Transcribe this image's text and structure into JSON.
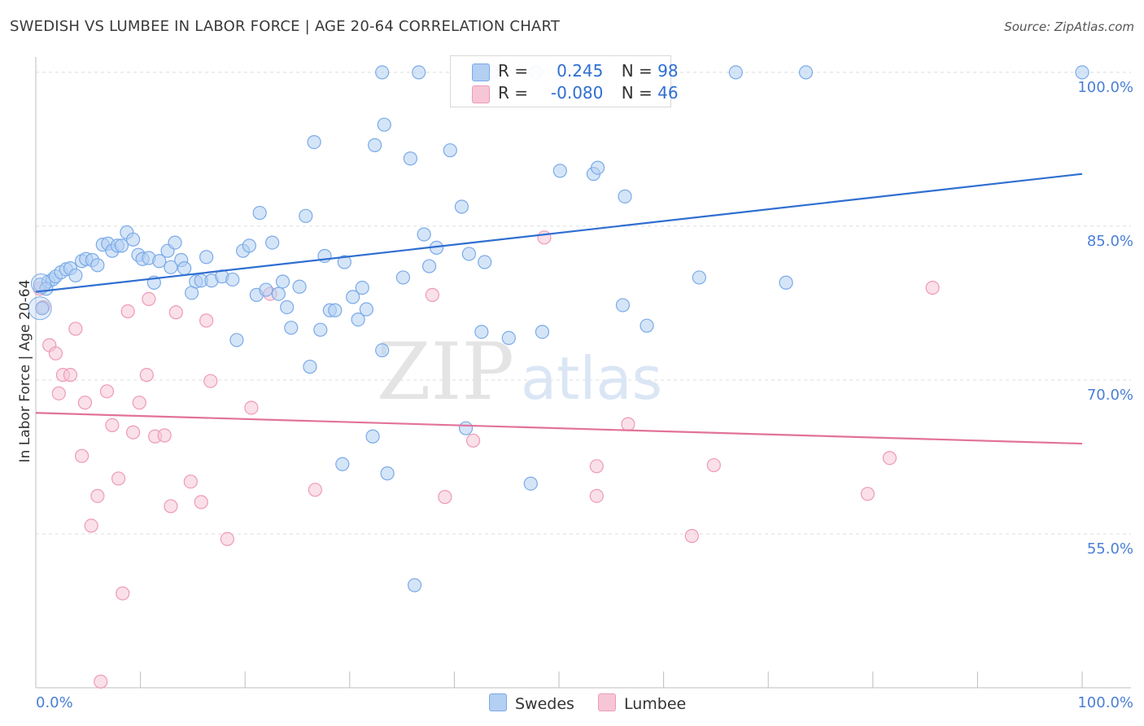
{
  "header": {
    "title": "SWEDISH VS LUMBEE IN LABOR FORCE | AGE 20-64 CORRELATION CHART",
    "source": "Source: ZipAtlas.com"
  },
  "colors": {
    "blue": "#7aaae8",
    "blue_fill": "#b3cff2",
    "blue_line": "#2f6fd1",
    "pink": "#ee9ab5",
    "pink_fill": "#f6c6d6",
    "pink_line": "#e2729a",
    "grid": "#dcdcdc",
    "tick_text": "#4a7fd6"
  },
  "legend": {
    "rows": [
      {
        "r_label": "R = ",
        "r_value": "0.245",
        "n_label": "N = ",
        "n_value": "98"
      },
      {
        "r_label": "R = ",
        "r_value": "-0.080",
        "n_label": "N = ",
        "n_value": "46"
      }
    ]
  },
  "bottom_legend": [
    "Swedes",
    "Lumbee"
  ],
  "watermark": {
    "zip": "ZIP",
    "atlas": "atlas"
  },
  "chart_data": {
    "type": "scatter",
    "title": "SWEDISH VS LUMBEE IN LABOR FORCE | AGE 20-64 CORRELATION CHART",
    "xlabel": "",
    "ylabel": "In Labor Force | Age 20-64",
    "xlim": [
      0,
      100
    ],
    "ylim": [
      40,
      101.5
    ],
    "x_tick_labels": [
      "0.0%",
      "100.0%"
    ],
    "y_ticks": [
      55,
      70,
      85,
      100
    ],
    "y_tick_labels": [
      "55.0%",
      "70.0%",
      "85.0%",
      "100.0%"
    ],
    "grid": true,
    "legend_position": "top-center",
    "series": [
      {
        "name": "Swedes",
        "color": "#7aaae8",
        "r": 0.245,
        "n": 98,
        "trend": {
          "x": [
            0,
            100
          ],
          "y": [
            78.6,
            90.1
          ]
        },
        "points": [
          [
            0.4,
            79.3
          ],
          [
            0.6,
            77.0
          ],
          [
            1.2,
            79.6
          ],
          [
            1.6,
            79.8
          ],
          [
            1.9,
            80.1
          ],
          [
            2.4,
            80.5
          ],
          [
            2.9,
            80.8
          ],
          [
            3.3,
            80.9
          ],
          [
            3.8,
            80.2
          ],
          [
            4.4,
            81.6
          ],
          [
            4.8,
            81.8
          ],
          [
            5.4,
            81.7
          ],
          [
            5.9,
            81.2
          ],
          [
            6.4,
            83.2
          ],
          [
            6.9,
            83.3
          ],
          [
            7.3,
            82.6
          ],
          [
            7.8,
            83.1
          ],
          [
            8.2,
            83.1
          ],
          [
            8.7,
            84.4
          ],
          [
            9.3,
            83.7
          ],
          [
            9.8,
            82.2
          ],
          [
            10.2,
            81.8
          ],
          [
            10.8,
            81.9
          ],
          [
            11.3,
            79.5
          ],
          [
            11.8,
            81.6
          ],
          [
            12.6,
            82.6
          ],
          [
            12.9,
            81.0
          ],
          [
            13.3,
            83.4
          ],
          [
            13.9,
            81.7
          ],
          [
            14.2,
            80.9
          ],
          [
            14.9,
            78.5
          ],
          [
            15.3,
            79.6
          ],
          [
            15.8,
            79.7
          ],
          [
            16.3,
            82.0
          ],
          [
            16.8,
            79.7
          ],
          [
            17.8,
            80.1
          ],
          [
            18.8,
            79.8
          ],
          [
            19.2,
            73.9
          ],
          [
            19.8,
            82.6
          ],
          [
            20.4,
            83.1
          ],
          [
            21.1,
            78.3
          ],
          [
            21.4,
            86.3
          ],
          [
            22.0,
            78.8
          ],
          [
            22.6,
            83.4
          ],
          [
            23.2,
            78.4
          ],
          [
            23.6,
            79.6
          ],
          [
            24.0,
            77.1
          ],
          [
            24.4,
            75.1
          ],
          [
            25.2,
            79.1
          ],
          [
            25.8,
            86.0
          ],
          [
            26.2,
            71.3
          ],
          [
            26.6,
            93.2
          ],
          [
            27.2,
            74.9
          ],
          [
            27.6,
            82.1
          ],
          [
            28.1,
            76.8
          ],
          [
            28.6,
            76.8
          ],
          [
            29.3,
            61.8
          ],
          [
            29.5,
            81.5
          ],
          [
            30.3,
            78.1
          ],
          [
            30.8,
            75.9
          ],
          [
            31.2,
            79.0
          ],
          [
            31.6,
            76.9
          ],
          [
            32.2,
            64.5
          ],
          [
            32.4,
            92.9
          ],
          [
            33.1,
            72.9
          ],
          [
            33.3,
            94.9
          ],
          [
            33.6,
            60.9
          ],
          [
            33.1,
            100.0
          ],
          [
            35.1,
            80.0
          ],
          [
            35.8,
            91.6
          ],
          [
            36.2,
            50.0
          ],
          [
            36.6,
            100.0
          ],
          [
            37.1,
            84.2
          ],
          [
            37.6,
            81.1
          ],
          [
            38.3,
            82.9
          ],
          [
            39.6,
            92.4
          ],
          [
            40.7,
            86.9
          ],
          [
            41.1,
            65.3
          ],
          [
            41.4,
            82.3
          ],
          [
            42.6,
            74.7
          ],
          [
            42.9,
            81.5
          ],
          [
            43.6,
            100.0
          ],
          [
            45.2,
            74.1
          ],
          [
            47.3,
            59.9
          ],
          [
            47.8,
            100.0
          ],
          [
            48.4,
            74.7
          ],
          [
            50.1,
            90.4
          ],
          [
            53.3,
            90.1
          ],
          [
            53.7,
            90.7
          ],
          [
            56.3,
            87.9
          ],
          [
            56.1,
            77.3
          ],
          [
            58.4,
            75.3
          ],
          [
            63.4,
            80.0
          ],
          [
            66.9,
            100.0
          ],
          [
            71.7,
            79.5
          ],
          [
            73.6,
            100.0
          ],
          [
            100.0,
            100.0
          ],
          [
            1.0,
            78.9
          ]
        ]
      },
      {
        "name": "Lumbee",
        "color": "#ee9ab5",
        "r": -0.08,
        "n": 46,
        "trend": {
          "x": [
            0,
            100
          ],
          "y": [
            66.8,
            63.8
          ]
        },
        "points": [
          [
            0.4,
            78.9
          ],
          [
            0.7,
            77.1
          ],
          [
            1.3,
            73.4
          ],
          [
            1.9,
            72.6
          ],
          [
            2.2,
            68.7
          ],
          [
            2.6,
            70.5
          ],
          [
            3.3,
            70.5
          ],
          [
            3.8,
            75.0
          ],
          [
            4.4,
            62.6
          ],
          [
            4.7,
            67.8
          ],
          [
            5.3,
            55.8
          ],
          [
            5.9,
            58.7
          ],
          [
            6.2,
            40.6
          ],
          [
            6.8,
            68.9
          ],
          [
            7.3,
            65.6
          ],
          [
            7.9,
            60.4
          ],
          [
            8.3,
            49.2
          ],
          [
            8.8,
            76.7
          ],
          [
            9.3,
            64.9
          ],
          [
            9.9,
            67.8
          ],
          [
            10.6,
            70.5
          ],
          [
            10.8,
            77.9
          ],
          [
            11.4,
            64.5
          ],
          [
            12.3,
            64.6
          ],
          [
            12.9,
            57.7
          ],
          [
            13.4,
            76.6
          ],
          [
            14.8,
            60.1
          ],
          [
            15.8,
            58.1
          ],
          [
            16.3,
            75.8
          ],
          [
            16.7,
            69.9
          ],
          [
            18.3,
            54.5
          ],
          [
            20.6,
            67.3
          ],
          [
            22.4,
            78.4
          ],
          [
            26.7,
            59.3
          ],
          [
            37.9,
            78.3
          ],
          [
            39.1,
            58.6
          ],
          [
            41.8,
            64.1
          ],
          [
            48.6,
            83.9
          ],
          [
            53.6,
            61.6
          ],
          [
            53.6,
            58.7
          ],
          [
            56.6,
            65.7
          ],
          [
            62.7,
            54.8
          ],
          [
            64.8,
            61.7
          ],
          [
            79.5,
            58.9
          ],
          [
            81.6,
            62.4
          ],
          [
            85.7,
            79.0
          ]
        ]
      }
    ]
  }
}
